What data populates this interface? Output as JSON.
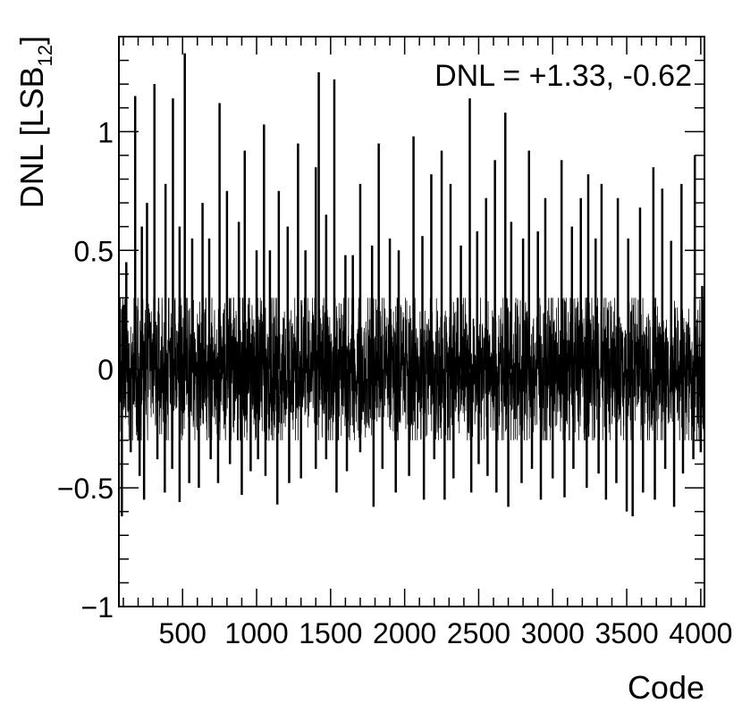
{
  "chart_data": {
    "type": "line",
    "title": "",
    "xlabel": "Code",
    "ylabel": {
      "main": "DNL [LSB",
      "subscript": "12",
      "close": "]"
    },
    "annotation": "DNL = +1.33, -0.62",
    "xlim": [
      70,
      4025
    ],
    "ylim": [
      -1,
      1.4
    ],
    "xticks": [
      500,
      1000,
      1500,
      2000,
      2500,
      3000,
      3500,
      4000
    ],
    "xtick_labels": [
      "500",
      "1000",
      "1500",
      "2000",
      "2500",
      "3000",
      "3500",
      "4000"
    ],
    "yticks": [
      -1,
      -0.5,
      0,
      0.5,
      1
    ],
    "ytick_labels": [
      "−1",
      "−0.5",
      "0",
      "0.5",
      "1"
    ],
    "grid": false,
    "series": [
      {
        "style": "step",
        "color": "#000000",
        "noise_band": [
          -0.3,
          0.3
        ],
        "spikes_positive": [
          [
            100,
            0.27
          ],
          [
            120,
            0.45
          ],
          [
            180,
            1.15
          ],
          [
            225,
            0.6
          ],
          [
            260,
            0.7
          ],
          [
            310,
            1.2
          ],
          [
            385,
            0.78
          ],
          [
            435,
            1.14
          ],
          [
            480,
            0.6
          ],
          [
            515,
            1.33
          ],
          [
            565,
            0.55
          ],
          [
            635,
            0.7
          ],
          [
            680,
            0.55
          ],
          [
            750,
            1.12
          ],
          [
            800,
            0.75
          ],
          [
            880,
            0.62
          ],
          [
            920,
            0.92
          ],
          [
            1000,
            0.5
          ],
          [
            1050,
            1.03
          ],
          [
            1090,
            0.5
          ],
          [
            1150,
            0.75
          ],
          [
            1210,
            0.6
          ],
          [
            1280,
            0.95
          ],
          [
            1330,
            0.5
          ],
          [
            1400,
            0.85
          ],
          [
            1420,
            1.25
          ],
          [
            1470,
            0.65
          ],
          [
            1525,
            1.22
          ],
          [
            1600,
            0.48
          ],
          [
            1650,
            0.48
          ],
          [
            1700,
            0.78
          ],
          [
            1780,
            0.52
          ],
          [
            1825,
            0.95
          ],
          [
            1900,
            0.55
          ],
          [
            1960,
            0.5
          ],
          [
            2060,
            0.98
          ],
          [
            2120,
            0.56
          ],
          [
            2180,
            0.82
          ],
          [
            2250,
            0.92
          ],
          [
            2310,
            0.78
          ],
          [
            2380,
            0.52
          ],
          [
            2440,
            1.14
          ],
          [
            2490,
            0.58
          ],
          [
            2550,
            0.72
          ],
          [
            2610,
            0.88
          ],
          [
            2680,
            1.08
          ],
          [
            2720,
            0.62
          ],
          [
            2800,
            0.55
          ],
          [
            2840,
            0.92
          ],
          [
            2900,
            0.58
          ],
          [
            2950,
            0.72
          ],
          [
            3060,
            0.88
          ],
          [
            3130,
            0.6
          ],
          [
            3190,
            0.72
          ],
          [
            3240,
            0.82
          ],
          [
            3290,
            0.55
          ],
          [
            3330,
            0.78
          ],
          [
            3440,
            0.72
          ],
          [
            3510,
            0.55
          ],
          [
            3590,
            0.68
          ],
          [
            3680,
            0.85
          ],
          [
            3740,
            0.76
          ],
          [
            3800,
            0.54
          ],
          [
            3870,
            0.78
          ],
          [
            3960,
            0.9
          ],
          [
            4010,
            0.35
          ]
        ],
        "spikes_negative": [
          [
            90,
            -0.62
          ],
          [
            150,
            -0.35
          ],
          [
            210,
            -0.45
          ],
          [
            240,
            -0.55
          ],
          [
            330,
            -0.38
          ],
          [
            380,
            -0.52
          ],
          [
            430,
            -0.42
          ],
          [
            480,
            -0.56
          ],
          [
            545,
            -0.48
          ],
          [
            610,
            -0.5
          ],
          [
            690,
            -0.38
          ],
          [
            740,
            -0.48
          ],
          [
            820,
            -0.4
          ],
          [
            900,
            -0.53
          ],
          [
            960,
            -0.43
          ],
          [
            1010,
            -0.38
          ],
          [
            1060,
            -0.45
          ],
          [
            1140,
            -0.57
          ],
          [
            1220,
            -0.48
          ],
          [
            1300,
            -0.46
          ],
          [
            1400,
            -0.42
          ],
          [
            1470,
            -0.38
          ],
          [
            1540,
            -0.52
          ],
          [
            1610,
            -0.43
          ],
          [
            1700,
            -0.35
          ],
          [
            1790,
            -0.58
          ],
          [
            1850,
            -0.42
          ],
          [
            1940,
            -0.52
          ],
          [
            2030,
            -0.45
          ],
          [
            2130,
            -0.55
          ],
          [
            2200,
            -0.38
          ],
          [
            2270,
            -0.55
          ],
          [
            2330,
            -0.46
          ],
          [
            2450,
            -0.52
          ],
          [
            2500,
            -0.4
          ],
          [
            2560,
            -0.45
          ],
          [
            2620,
            -0.52
          ],
          [
            2700,
            -0.58
          ],
          [
            2790,
            -0.48
          ],
          [
            2860,
            -0.42
          ],
          [
            2920,
            -0.55
          ],
          [
            3000,
            -0.46
          ],
          [
            3080,
            -0.54
          ],
          [
            3140,
            -0.42
          ],
          [
            3230,
            -0.5
          ],
          [
            3310,
            -0.44
          ],
          [
            3360,
            -0.55
          ],
          [
            3430,
            -0.48
          ],
          [
            3500,
            -0.6
          ],
          [
            3540,
            -0.62
          ],
          [
            3610,
            -0.52
          ],
          [
            3690,
            -0.55
          ],
          [
            3760,
            -0.42
          ],
          [
            3820,
            -0.58
          ],
          [
            3880,
            -0.44
          ],
          [
            3950,
            -0.38
          ],
          [
            4000,
            -0.35
          ]
        ]
      }
    ]
  }
}
